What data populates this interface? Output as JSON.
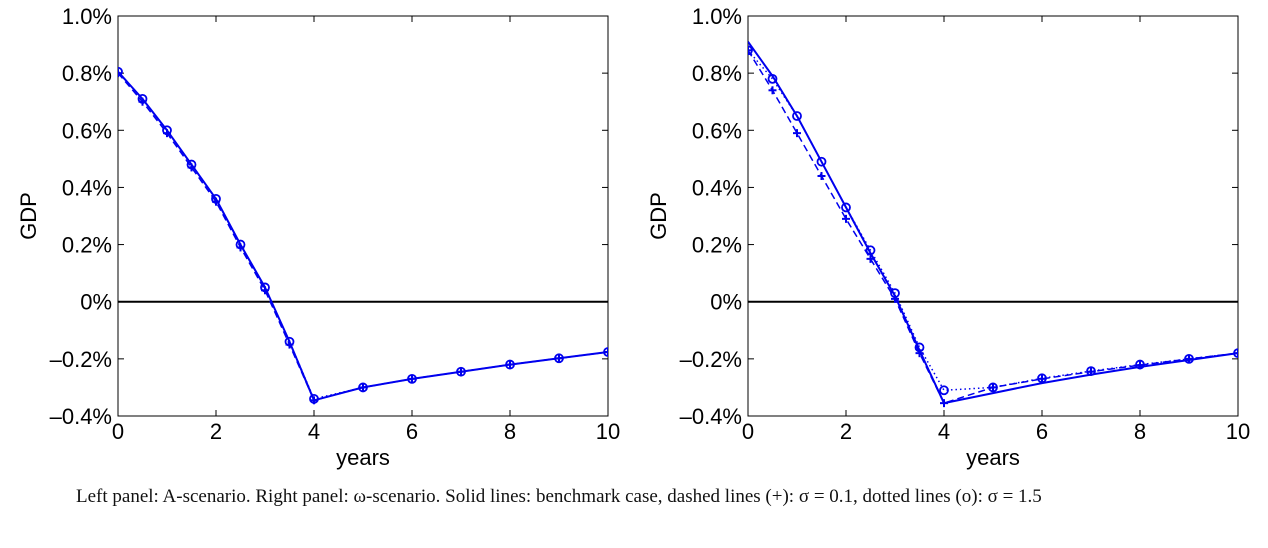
{
  "caption": "Left panel: A-scenario. Right panel: ω-scenario. Solid lines: benchmark case, dashed lines (+): σ = 0.1, dotted lines (o): σ = 1.5",
  "colors": {
    "series": "#0000ee",
    "zero_line": "#000000",
    "axes": "#000000"
  },
  "chart_data": [
    {
      "type": "line",
      "panel": "left",
      "xlabel": "years",
      "ylabel": "GDP",
      "xlim": [
        0,
        10
      ],
      "ylim": [
        -0.4,
        1.0
      ],
      "xticks": [
        0,
        2,
        4,
        6,
        8,
        10
      ],
      "xtick_labels": [
        "0",
        "2",
        "4",
        "6",
        "8",
        "10"
      ],
      "yticks": [
        -0.4,
        -0.2,
        0,
        0.2,
        0.4,
        0.6,
        0.8,
        1.0
      ],
      "ytick_labels": [
        "–0.4%",
        "–0.2%",
        "0%",
        "0.2%",
        "0.4%",
        "0.6%",
        "0.8%",
        "1.0%"
      ],
      "hline": 0,
      "grid": false,
      "series": [
        {
          "style": "solid",
          "x": [
            0,
            0.5,
            1,
            1.5,
            2,
            2.5,
            3,
            3.5,
            4,
            5,
            6,
            7,
            8,
            9,
            10
          ],
          "y": [
            0.805,
            0.71,
            0.6,
            0.48,
            0.36,
            0.2,
            0.05,
            -0.14,
            -0.345,
            -0.3,
            -0.27,
            -0.245,
            -0.22,
            -0.198,
            -0.176
          ]
        },
        {
          "style": "dashed",
          "marker": "+",
          "x": [
            0,
            0.5,
            1,
            1.5,
            2,
            2.5,
            3,
            3.5,
            4,
            5,
            6,
            7,
            8,
            9,
            10
          ],
          "y": [
            0.8,
            0.7,
            0.59,
            0.47,
            0.35,
            0.19,
            0.04,
            -0.15,
            -0.345,
            -0.3,
            -0.27,
            -0.245,
            -0.22,
            -0.198,
            -0.176
          ]
        },
        {
          "style": "dotted",
          "marker": "o",
          "x": [
            0,
            0.5,
            1,
            1.5,
            2,
            2.5,
            3,
            3.5,
            4,
            5,
            6,
            7,
            8,
            9,
            10
          ],
          "y": [
            0.805,
            0.71,
            0.6,
            0.48,
            0.36,
            0.2,
            0.05,
            -0.14,
            -0.34,
            -0.3,
            -0.27,
            -0.245,
            -0.22,
            -0.198,
            -0.176
          ]
        }
      ]
    },
    {
      "type": "line",
      "panel": "right",
      "xlabel": "years",
      "ylabel": "GDP",
      "xlim": [
        0,
        10
      ],
      "ylim": [
        -0.4,
        1.0
      ],
      "xticks": [
        0,
        2,
        4,
        6,
        8,
        10
      ],
      "xtick_labels": [
        "0",
        "2",
        "4",
        "6",
        "8",
        "10"
      ],
      "yticks": [
        -0.4,
        -0.2,
        0,
        0.2,
        0.4,
        0.6,
        0.8,
        1.0
      ],
      "ytick_labels": [
        "–0.4%",
        "–0.2%",
        "0%",
        "0.2%",
        "0.4%",
        "0.6%",
        "0.8%",
        "1.0%"
      ],
      "hline": 0,
      "grid": false,
      "series": [
        {
          "style": "solid",
          "x": [
            0,
            0.5,
            1,
            1.5,
            2,
            2.5,
            3,
            3.5,
            4,
            5,
            6,
            7,
            8,
            9,
            10
          ],
          "y": [
            0.91,
            0.79,
            0.65,
            0.49,
            0.33,
            0.17,
            0.02,
            -0.17,
            -0.355,
            -0.32,
            -0.285,
            -0.255,
            -0.228,
            -0.204,
            -0.18
          ]
        },
        {
          "style": "dashed",
          "marker": "+",
          "x": [
            0,
            0.5,
            1,
            1.5,
            2,
            2.5,
            3,
            3.5,
            4,
            5,
            6,
            7,
            8,
            9,
            10
          ],
          "y": [
            0.88,
            0.74,
            0.59,
            0.44,
            0.29,
            0.15,
            0.01,
            -0.18,
            -0.355,
            -0.3,
            -0.27,
            -0.245,
            -0.222,
            -0.2,
            -0.18
          ]
        },
        {
          "style": "dotted",
          "marker": "o",
          "x": [
            0,
            0.5,
            1,
            1.5,
            2,
            2.5,
            3,
            3.5,
            4,
            5,
            6,
            7,
            8,
            9,
            10
          ],
          "y": [
            0.88,
            0.78,
            0.65,
            0.49,
            0.33,
            0.18,
            0.03,
            -0.16,
            -0.31,
            -0.3,
            -0.268,
            -0.243,
            -0.22,
            -0.2,
            -0.18
          ]
        }
      ]
    }
  ]
}
